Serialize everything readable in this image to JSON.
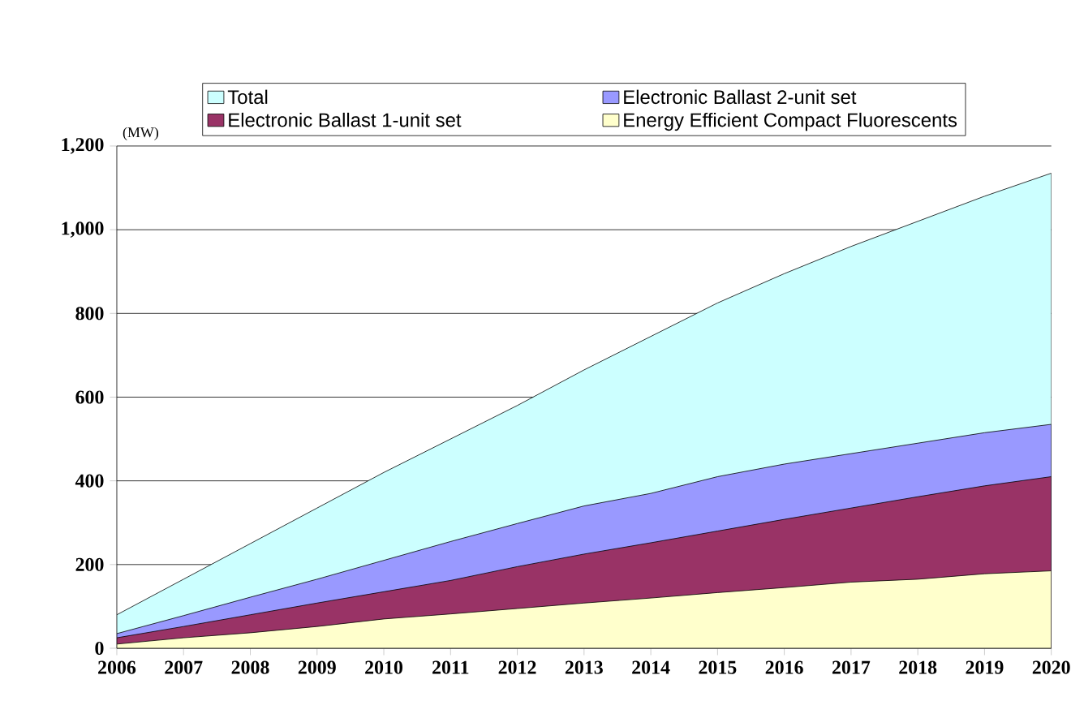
{
  "chart_data": {
    "type": "area",
    "ylabel": "(MW)",
    "categories": [
      "2006",
      "2007",
      "2008",
      "2009",
      "2010",
      "2011",
      "2012",
      "2013",
      "2014",
      "2015",
      "2016",
      "2017",
      "2018",
      "2019",
      "2020"
    ],
    "series": [
      {
        "name": "Total",
        "color": "#ccffff",
        "values": [
          80,
          165,
          250,
          335,
          420,
          500,
          580,
          665,
          745,
          825,
          895,
          960,
          1020,
          1080,
          1135
        ]
      },
      {
        "name": "Electronic Ballast 2-unit set",
        "color": "#9999ff",
        "values": [
          35,
          78,
          122,
          165,
          210,
          255,
          298,
          340,
          370,
          410,
          440,
          465,
          490,
          515,
          535
        ]
      },
      {
        "name": "Electronic Ballast 1-unit set",
        "color": "#993366",
        "values": [
          25,
          52,
          80,
          108,
          135,
          162,
          195,
          225,
          252,
          280,
          308,
          335,
          362,
          388,
          410
        ]
      },
      {
        "name": "Energy Efficient Compact Fluorescents",
        "color": "#ffffcc",
        "values": [
          10,
          25,
          37,
          52,
          70,
          82,
          95,
          108,
          120,
          133,
          145,
          158,
          165,
          178,
          185
        ]
      }
    ],
    "ylim": [
      0,
      1200
    ],
    "yticks": [
      0,
      200,
      400,
      600,
      800,
      {
        "value": 1000,
        "label": "1,000"
      },
      {
        "value": 1200,
        "label": "1,200"
      }
    ],
    "grid": "y",
    "legend": "top"
  }
}
